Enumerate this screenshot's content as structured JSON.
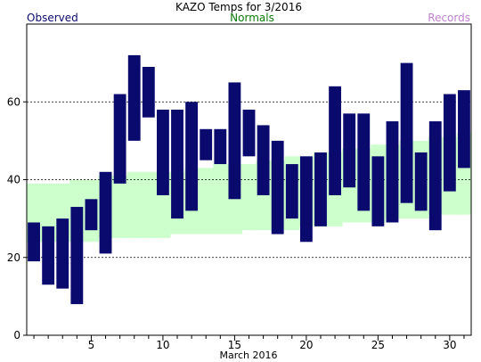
{
  "chart_data": {
    "type": "bar",
    "title": "KAZO Temps for 3/2016",
    "xlabel": "March 2016",
    "ylabel": "",
    "legend": [
      "Observed",
      "Normals",
      "Records"
    ],
    "legend_placement": "top",
    "colors": {
      "observed": "#0a0a6e",
      "normals": "#ccffcc",
      "normals_text": "#0a7a0a",
      "records_text": "#c080d0",
      "observed_text": "#0a0a6e"
    },
    "grid": "dashed-horizontal",
    "x": [
      1,
      2,
      3,
      4,
      5,
      6,
      7,
      8,
      9,
      10,
      11,
      12,
      13,
      14,
      15,
      16,
      17,
      18,
      19,
      20,
      21,
      22,
      23,
      24,
      25,
      26,
      27,
      28,
      29,
      30,
      31
    ],
    "xlim": [
      0.5,
      31.5
    ],
    "x_ticks": [
      5,
      10,
      15,
      20,
      25,
      30
    ],
    "x_tick_labels": [
      "5",
      "10",
      "15",
      "20",
      "25",
      "30"
    ],
    "ylim": [
      0,
      80
    ],
    "y_ticks": [
      0,
      20,
      40,
      60
    ],
    "y_tick_labels": [
      "0",
      "20",
      "40",
      "60"
    ],
    "series": [
      {
        "name": "Observed",
        "high": [
          29,
          28,
          30,
          33,
          35,
          42,
          62,
          72,
          69,
          58,
          58,
          60,
          53,
          53,
          65,
          58,
          54,
          50,
          44,
          46,
          47,
          64,
          57,
          57,
          46,
          55,
          70,
          47,
          55,
          62,
          63
        ],
        "low": [
          19,
          13,
          12,
          8,
          27,
          21,
          39,
          50,
          56,
          36,
          30,
          32,
          45,
          44,
          35,
          46,
          36,
          26,
          30,
          24,
          28,
          36,
          38,
          32,
          28,
          29,
          34,
          32,
          27,
          37,
          43
        ]
      },
      {
        "name": "Normals",
        "high": [
          39,
          39,
          39,
          40,
          40,
          41,
          41,
          42,
          42,
          42,
          42,
          43,
          43,
          44,
          44,
          44,
          45,
          45,
          46,
          46,
          47,
          47,
          48,
          48,
          49,
          49,
          50,
          50,
          51,
          51,
          52
        ],
        "low": [
          24,
          24,
          24,
          24,
          24,
          25,
          25,
          25,
          25,
          25,
          26,
          26,
          26,
          26,
          26,
          27,
          27,
          27,
          27,
          28,
          28,
          28,
          29,
          29,
          29,
          30,
          30,
          30,
          31,
          31,
          31
        ]
      }
    ]
  }
}
